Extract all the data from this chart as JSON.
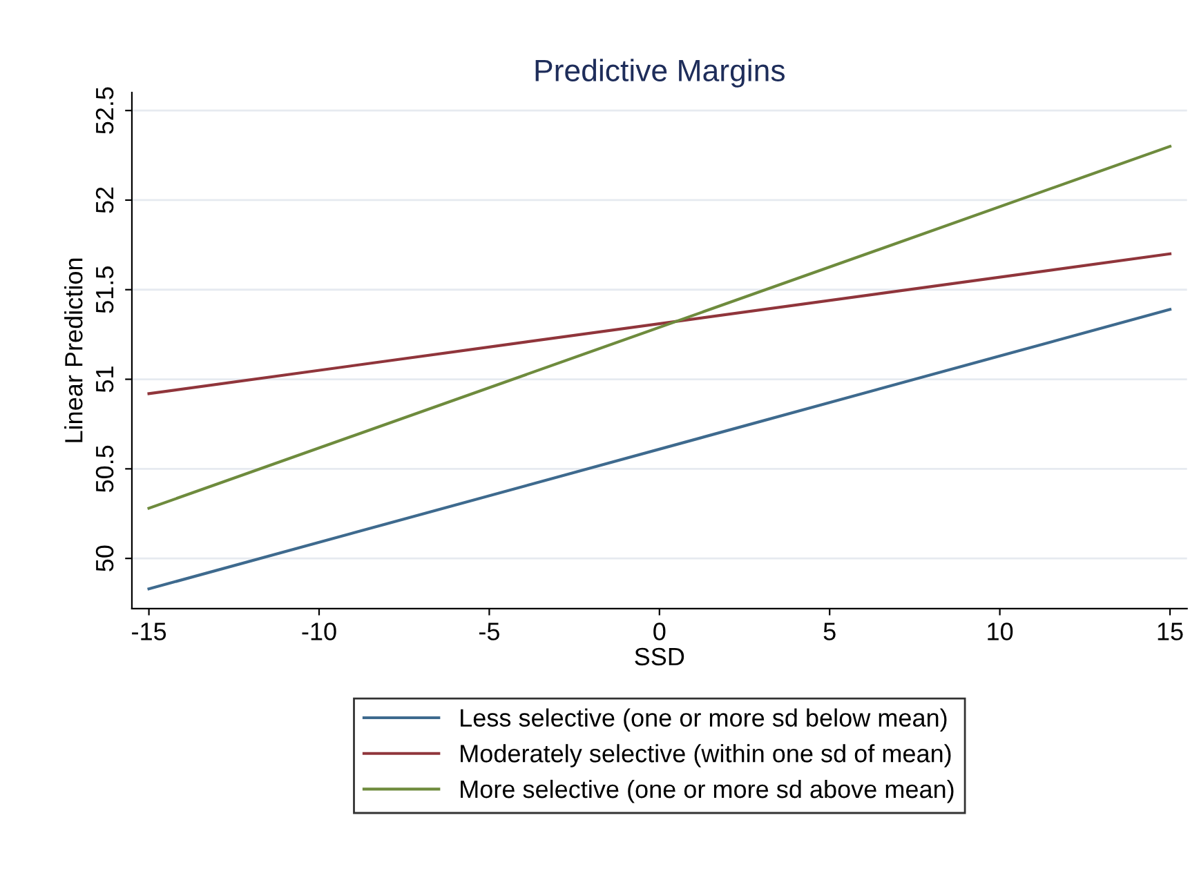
{
  "chart_data": {
    "type": "line",
    "title": "Predictive Margins",
    "xlabel": "SSD",
    "ylabel": "Linear Prediction",
    "x": [
      -15,
      15
    ],
    "series": [
      {
        "name": "Less selective (one or more sd below mean)",
        "color": "#3e6a8e",
        "values": [
          49.83,
          51.39
        ]
      },
      {
        "name": "Moderately selective (within one sd of mean)",
        "color": "#90353b",
        "values": [
          50.92,
          51.7
        ]
      },
      {
        "name": "More selective (one or more sd above mean)",
        "color": "#6e8b3d",
        "values": [
          50.28,
          52.3
        ]
      }
    ],
    "xlim": [
      -15.5,
      15.5
    ],
    "xticks": [
      -15,
      -10,
      -5,
      0,
      5,
      10,
      15
    ],
    "ylim": [
      49.72,
      52.6
    ],
    "yticks": [
      50,
      50.5,
      51,
      51.5,
      52,
      52.5
    ],
    "grid": "y",
    "legend": "bottom",
    "marker": "none",
    "line_style": "solid"
  }
}
